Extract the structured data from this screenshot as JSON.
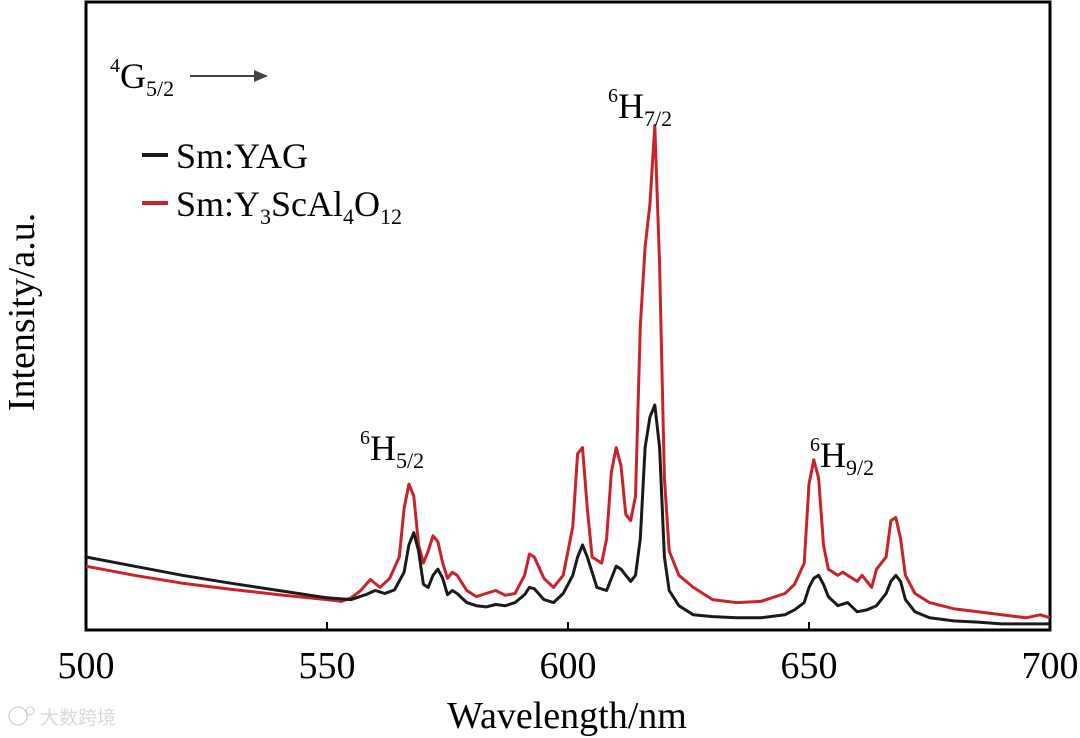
{
  "chart_data": {
    "type": "line",
    "title": "",
    "xlabel": "Wavelength/nm",
    "ylabel": "Intensity/a.u.",
    "xlim": [
      500,
      700
    ],
    "ylim": [
      0,
      1.0
    ],
    "x_ticks": [
      500,
      550,
      600,
      650,
      700
    ],
    "x_tick_labels": [
      "500",
      "550",
      "600",
      "650",
      "700"
    ],
    "grid": false,
    "legend_position": "top-left",
    "legend": [
      {
        "key": "yag",
        "prefix": "Sm:",
        "text": "Sm:YAG",
        "parts": [
          {
            "t": "YAG"
          }
        ]
      },
      {
        "key": "ysc",
        "prefix": "Sm:",
        "text": "Sm:Y3ScAl4O12",
        "parts": [
          {
            "t": "Y"
          },
          {
            "t": "3",
            "sub": true
          },
          {
            "t": "ScAl"
          },
          {
            "t": "4",
            "sub": true
          },
          {
            "t": "O"
          },
          {
            "t": "12",
            "sub": true
          }
        ]
      }
    ],
    "annotations": [
      {
        "key": "g52",
        "sup": "4",
        "base": "G",
        "sub": "5/2",
        "arrow": true
      },
      {
        "key": "h72",
        "sup": "6",
        "base": "H",
        "sub": "7/2"
      },
      {
        "key": "h52",
        "sup": "6",
        "base": "H",
        "sub": "5/2"
      },
      {
        "key": "h92",
        "sup": "6",
        "base": "H",
        "sub": "9/2"
      }
    ],
    "series": [
      {
        "name": "Sm:YAG",
        "color": "#1a1a1a",
        "points": [
          [
            500,
            0.12
          ],
          [
            510,
            0.105
          ],
          [
            520,
            0.09
          ],
          [
            530,
            0.077
          ],
          [
            540,
            0.065
          ],
          [
            550,
            0.053
          ],
          [
            555,
            0.05
          ],
          [
            558,
            0.058
          ],
          [
            560,
            0.065
          ],
          [
            562,
            0.06
          ],
          [
            564,
            0.066
          ],
          [
            566,
            0.095
          ],
          [
            567,
            0.14
          ],
          [
            568,
            0.16
          ],
          [
            569,
            0.13
          ],
          [
            570,
            0.075
          ],
          [
            571,
            0.07
          ],
          [
            572,
            0.09
          ],
          [
            573,
            0.1
          ],
          [
            574,
            0.085
          ],
          [
            575,
            0.058
          ],
          [
            576,
            0.065
          ],
          [
            577,
            0.06
          ],
          [
            579,
            0.045
          ],
          [
            581,
            0.04
          ],
          [
            583,
            0.038
          ],
          [
            585,
            0.042
          ],
          [
            587,
            0.04
          ],
          [
            589,
            0.045
          ],
          [
            591,
            0.058
          ],
          [
            592,
            0.07
          ],
          [
            593,
            0.068
          ],
          [
            595,
            0.05
          ],
          [
            597,
            0.045
          ],
          [
            599,
            0.06
          ],
          [
            601,
            0.09
          ],
          [
            602,
            0.12
          ],
          [
            603,
            0.14
          ],
          [
            604,
            0.12
          ],
          [
            606,
            0.07
          ],
          [
            608,
            0.065
          ],
          [
            609,
            0.085
          ],
          [
            610,
            0.105
          ],
          [
            611,
            0.1
          ],
          [
            612,
            0.09
          ],
          [
            613,
            0.08
          ],
          [
            614,
            0.09
          ],
          [
            615,
            0.15
          ],
          [
            616,
            0.3
          ],
          [
            617,
            0.35
          ],
          [
            618,
            0.37
          ],
          [
            619,
            0.3
          ],
          [
            620,
            0.12
          ],
          [
            621,
            0.065
          ],
          [
            623,
            0.04
          ],
          [
            626,
            0.025
          ],
          [
            630,
            0.022
          ],
          [
            635,
            0.02
          ],
          [
            640,
            0.02
          ],
          [
            645,
            0.025
          ],
          [
            647,
            0.033
          ],
          [
            649,
            0.045
          ],
          [
            650,
            0.07
          ],
          [
            651,
            0.085
          ],
          [
            652,
            0.09
          ],
          [
            653,
            0.075
          ],
          [
            654,
            0.055
          ],
          [
            656,
            0.04
          ],
          [
            658,
            0.045
          ],
          [
            660,
            0.03
          ],
          [
            662,
            0.033
          ],
          [
            664,
            0.04
          ],
          [
            666,
            0.06
          ],
          [
            667,
            0.08
          ],
          [
            668,
            0.09
          ],
          [
            669,
            0.08
          ],
          [
            670,
            0.05
          ],
          [
            672,
            0.03
          ],
          [
            675,
            0.02
          ],
          [
            680,
            0.015
          ],
          [
            685,
            0.013
          ],
          [
            690,
            0.01
          ],
          [
            695,
            0.01
          ],
          [
            700,
            0.01
          ]
        ]
      },
      {
        "name": "Sm:Y3ScAl4O12",
        "color": "#c8232a",
        "points": [
          [
            500,
            0.105
          ],
          [
            510,
            0.09
          ],
          [
            520,
            0.077
          ],
          [
            530,
            0.067
          ],
          [
            540,
            0.058
          ],
          [
            550,
            0.05
          ],
          [
            553,
            0.047
          ],
          [
            555,
            0.053
          ],
          [
            557,
            0.065
          ],
          [
            559,
            0.083
          ],
          [
            561,
            0.07
          ],
          [
            563,
            0.085
          ],
          [
            565,
            0.12
          ],
          [
            566,
            0.2
          ],
          [
            567,
            0.24
          ],
          [
            568,
            0.22
          ],
          [
            569,
            0.14
          ],
          [
            570,
            0.11
          ],
          [
            571,
            0.13
          ],
          [
            572,
            0.155
          ],
          [
            573,
            0.145
          ],
          [
            574,
            0.11
          ],
          [
            575,
            0.085
          ],
          [
            576,
            0.095
          ],
          [
            577,
            0.09
          ],
          [
            579,
            0.065
          ],
          [
            581,
            0.055
          ],
          [
            583,
            0.06
          ],
          [
            585,
            0.065
          ],
          [
            587,
            0.057
          ],
          [
            589,
            0.06
          ],
          [
            591,
            0.09
          ],
          [
            592,
            0.125
          ],
          [
            593,
            0.12
          ],
          [
            595,
            0.085
          ],
          [
            597,
            0.07
          ],
          [
            599,
            0.09
          ],
          [
            601,
            0.17
          ],
          [
            602,
            0.29
          ],
          [
            603,
            0.3
          ],
          [
            604,
            0.2
          ],
          [
            605,
            0.12
          ],
          [
            607,
            0.11
          ],
          [
            608,
            0.15
          ],
          [
            609,
            0.26
          ],
          [
            610,
            0.3
          ],
          [
            611,
            0.27
          ],
          [
            612,
            0.19
          ],
          [
            613,
            0.18
          ],
          [
            614,
            0.22
          ],
          [
            615,
            0.5
          ],
          [
            616,
            0.63
          ],
          [
            617,
            0.7
          ],
          [
            618,
            0.83
          ],
          [
            619,
            0.6
          ],
          [
            620,
            0.25
          ],
          [
            621,
            0.13
          ],
          [
            623,
            0.09
          ],
          [
            626,
            0.07
          ],
          [
            630,
            0.05
          ],
          [
            635,
            0.045
          ],
          [
            640,
            0.047
          ],
          [
            645,
            0.06
          ],
          [
            647,
            0.075
          ],
          [
            649,
            0.11
          ],
          [
            650,
            0.24
          ],
          [
            651,
            0.28
          ],
          [
            652,
            0.25
          ],
          [
            653,
            0.14
          ],
          [
            654,
            0.1
          ],
          [
            656,
            0.09
          ],
          [
            657,
            0.095
          ],
          [
            658,
            0.09
          ],
          [
            660,
            0.08
          ],
          [
            661,
            0.09
          ],
          [
            663,
            0.07
          ],
          [
            664,
            0.1
          ],
          [
            666,
            0.12
          ],
          [
            667,
            0.18
          ],
          [
            668,
            0.185
          ],
          [
            669,
            0.15
          ],
          [
            670,
            0.09
          ],
          [
            672,
            0.06
          ],
          [
            675,
            0.045
          ],
          [
            680,
            0.035
          ],
          [
            685,
            0.03
          ],
          [
            690,
            0.025
          ],
          [
            695,
            0.02
          ],
          [
            698,
            0.025
          ],
          [
            700,
            0.02
          ]
        ]
      }
    ]
  },
  "watermark": {
    "text": "大数跨境",
    "logo": "weibo-icon"
  }
}
